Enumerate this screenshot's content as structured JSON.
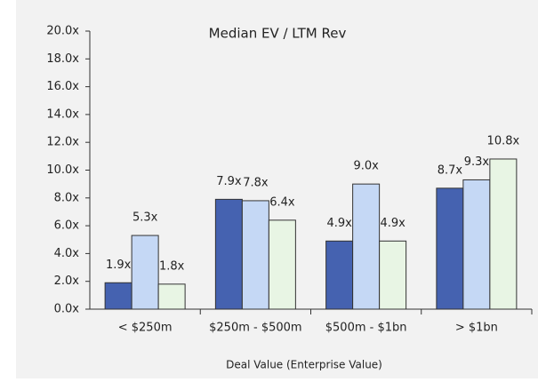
{
  "chart_data": {
    "type": "bar",
    "title": "Median EV / LTM Rev",
    "x_label": "Deal Value (Enterprise Value)",
    "categories": [
      "< $250m",
      "$250m - $500m",
      "$500m - $1bn",
      "> $1bn"
    ],
    "series": [
      {
        "color": "#4562b0",
        "values": [
          1.9,
          7.9,
          4.9,
          8.7
        ],
        "value_labels": [
          "1.9x",
          "7.9x",
          "4.9x",
          "8.7x"
        ]
      },
      {
        "color": "#c5d8f5",
        "values": [
          5.3,
          7.8,
          9.0,
          9.3
        ],
        "value_labels": [
          "5.3x",
          "7.8x",
          "9.0x",
          "9.3x"
        ]
      },
      {
        "color": "#e8f5e4",
        "values": [
          1.8,
          6.4,
          4.9,
          10.8
        ],
        "value_labels": [
          "1.8x",
          "6.4x",
          "4.9x",
          "10.8x"
        ]
      }
    ],
    "ylim": [
      0,
      20
    ],
    "yticks": [
      {
        "value": 0,
        "label": "0.0x"
      },
      {
        "value": 2,
        "label": "2.0x"
      },
      {
        "value": 4,
        "label": "4.0x"
      },
      {
        "value": 6,
        "label": "6.0x"
      },
      {
        "value": 8,
        "label": "8.0x"
      },
      {
        "value": 10,
        "label": "10.0x"
      },
      {
        "value": 12,
        "label": "12.0x"
      },
      {
        "value": 14,
        "label": "14.0x"
      },
      {
        "value": 16,
        "label": "16.0x"
      },
      {
        "value": 18,
        "label": "18.0x"
      },
      {
        "value": 20,
        "label": "20.0x"
      }
    ],
    "grid": false
  }
}
